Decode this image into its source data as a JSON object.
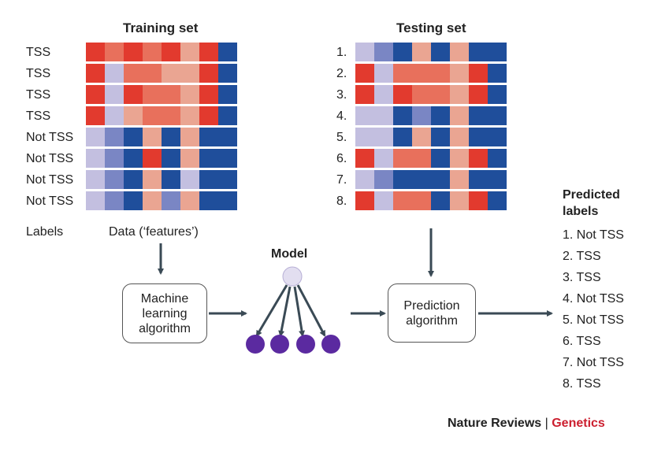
{
  "training": {
    "title": "Training set",
    "row_labels": [
      "TSS",
      "TSS",
      "TSS",
      "TSS",
      "Not TSS",
      "Not TSS",
      "Not TSS",
      "Not TSS"
    ],
    "matrix": [
      [
        3,
        2,
        3,
        2,
        3,
        1,
        3,
        -3
      ],
      [
        3,
        -1,
        2,
        2,
        1,
        1,
        3,
        -3
      ],
      [
        3,
        -1,
        3,
        2,
        2,
        1,
        3,
        -3
      ],
      [
        3,
        -1,
        1,
        2,
        2,
        1,
        3,
        -3
      ],
      [
        -1,
        -2,
        -3,
        1,
        -3,
        1,
        -3,
        -3
      ],
      [
        -1,
        -2,
        -3,
        3,
        -3,
        1,
        -3,
        -3
      ],
      [
        -1,
        -2,
        -3,
        1,
        -3,
        -1,
        -3,
        -3
      ],
      [
        -1,
        -2,
        -3,
        1,
        -2,
        1,
        -3,
        -3
      ]
    ],
    "footer_left": "Labels",
    "footer_right": "Data (‘features’)"
  },
  "testing": {
    "title": "Testing set",
    "row_labels": [
      "1.",
      "2.",
      "3.",
      "4.",
      "5.",
      "6.",
      "7.",
      "8."
    ],
    "matrix": [
      [
        -1,
        -2,
        -3,
        1,
        -3,
        1,
        -3,
        -3
      ],
      [
        3,
        -1,
        2,
        2,
        2,
        1,
        3,
        -3
      ],
      [
        3,
        -1,
        3,
        2,
        2,
        1,
        3,
        -3
      ],
      [
        -1,
        -1,
        -3,
        -2,
        -3,
        1,
        -3,
        -3
      ],
      [
        -1,
        -1,
        -3,
        1,
        -3,
        1,
        -3,
        -3
      ],
      [
        3,
        -1,
        2,
        2,
        -3,
        1,
        3,
        -3
      ],
      [
        -1,
        -2,
        -3,
        -3,
        -3,
        1,
        -3,
        -3
      ],
      [
        3,
        -1,
        2,
        2,
        -3,
        1,
        3,
        -3
      ]
    ]
  },
  "ml_box": {
    "lines": [
      "Machine",
      "learning",
      "algorithm"
    ]
  },
  "model": {
    "title": "Model"
  },
  "prediction_box": {
    "lines": [
      "Prediction",
      "algorithm"
    ]
  },
  "predicted": {
    "title_lines": [
      "Predicted",
      "labels"
    ],
    "items": [
      "1. Not TSS",
      "2. TSS",
      "3. TSS",
      "4. Not TSS",
      "5. Not TSS",
      "6. TSS",
      "7. Not TSS",
      "8. TSS"
    ]
  },
  "footer": {
    "journal": "Nature Reviews",
    "separator": " | ",
    "section": "Genetics"
  },
  "colors": {
    "red3": "#e23a2e",
    "red2": "#e8705c",
    "red1": "#eaa592",
    "blue1": "#c3bfe0",
    "blue2": "#7a86c4",
    "blue3": "#1f4e9b",
    "node_top": "#e2def0",
    "node_bottom": "#5b2aa0",
    "arrow": "#3a4a55",
    "brand_red": "#cc1f2f"
  }
}
